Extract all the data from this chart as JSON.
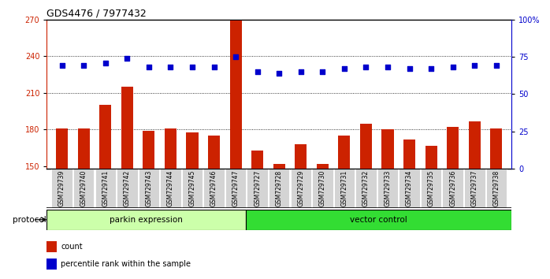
{
  "title": "GDS4476 / 7977432",
  "samples": [
    "GSM729739",
    "GSM729740",
    "GSM729741",
    "GSM729742",
    "GSM729743",
    "GSM729744",
    "GSM729745",
    "GSM729746",
    "GSM729747",
    "GSM729727",
    "GSM729728",
    "GSM729729",
    "GSM729730",
    "GSM729731",
    "GSM729732",
    "GSM729733",
    "GSM729734",
    "GSM729735",
    "GSM729736",
    "GSM729737",
    "GSM729738"
  ],
  "counts": [
    181,
    181,
    200,
    215,
    179,
    181,
    178,
    175,
    269,
    163,
    152,
    168,
    152,
    175,
    185,
    180,
    172,
    167,
    182,
    187,
    181
  ],
  "percentile_ranks": [
    69,
    69,
    71,
    74,
    68,
    68,
    68,
    68,
    75,
    65,
    64,
    65,
    65,
    67,
    68,
    68,
    67,
    67,
    68,
    69,
    69
  ],
  "parkin_count": 9,
  "vector_count": 12,
  "ylim_left": [
    148,
    270
  ],
  "ylim_right": [
    0,
    100
  ],
  "yticks_left": [
    150,
    180,
    210,
    240,
    270
  ],
  "yticks_right": [
    0,
    25,
    50,
    75,
    100
  ],
  "bar_color": "#cc2200",
  "dot_color": "#0000cc",
  "bg_color_parkin": "#ccffaa",
  "bg_color_vector": "#33dd33",
  "protocol_label": "protocol",
  "parkin_label": "parkin expression",
  "vector_label": "vector control",
  "legend_count": "count",
  "legend_pct": "percentile rank within the sample",
  "title_fontsize": 9,
  "tick_fontsize": 7,
  "xtick_fontsize": 5.5,
  "protocol_fontsize": 7.5
}
